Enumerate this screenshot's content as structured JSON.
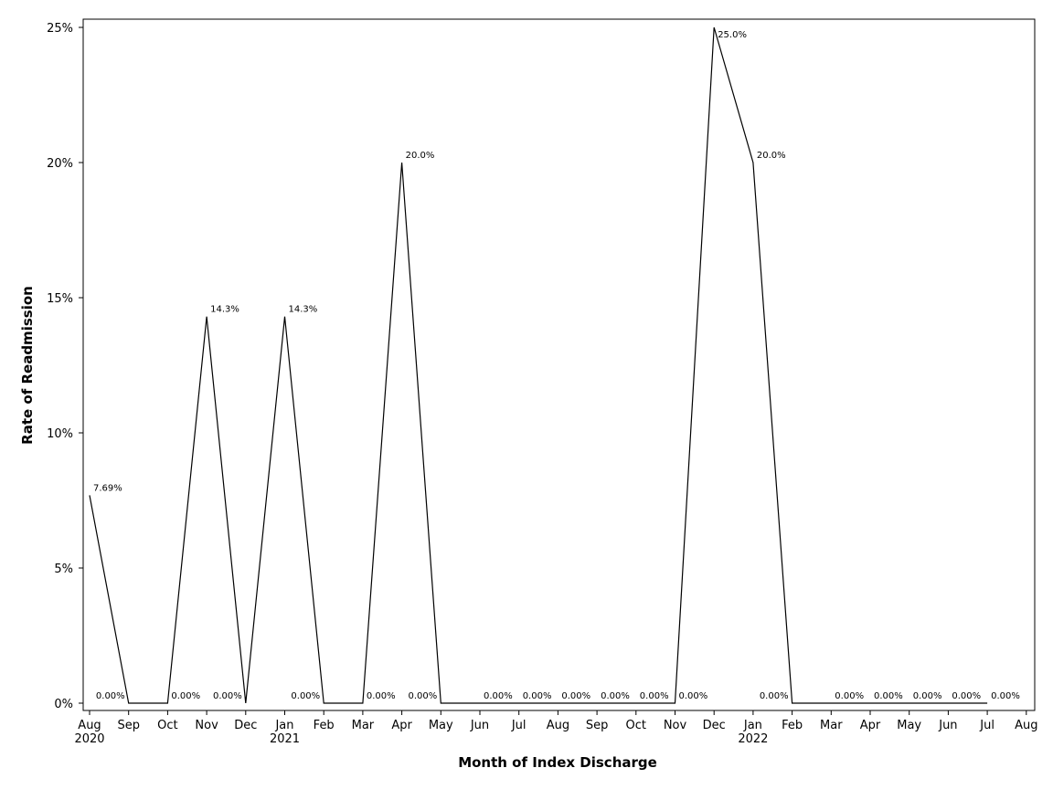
{
  "chart_data": {
    "type": "line",
    "title": "",
    "xlabel": "Month of Index Discharge",
    "ylabel": "Rate of Readmission",
    "ylim": [
      0,
      25
    ],
    "yticks": [
      0,
      5,
      10,
      15,
      20,
      25
    ],
    "ytick_labels": [
      "0%",
      "5%",
      "10%",
      "15%",
      "20%",
      "25%"
    ],
    "grid": false,
    "legend": "none",
    "x": [
      "2020-08",
      "2020-09",
      "2020-10",
      "2020-11",
      "2020-12",
      "2021-01",
      "2021-02",
      "2021-03",
      "2021-04",
      "2021-05",
      "2021-06",
      "2021-07",
      "2021-08",
      "2021-09",
      "2021-10",
      "2021-11",
      "2021-12",
      "2022-01",
      "2022-02",
      "2022-03",
      "2022-04",
      "2022-05",
      "2022-06",
      "2022-07"
    ],
    "xtick_labels": [
      "Aug",
      "Sep",
      "Oct",
      "Nov",
      "Dec",
      "Jan",
      "Feb",
      "Mar",
      "Apr",
      "May",
      "Jun",
      "Jul",
      "Aug",
      "Sep",
      "Oct",
      "Nov",
      "Dec",
      "Jan",
      "Feb",
      "Mar",
      "Apr",
      "May",
      "Jun",
      "Jul",
      "Aug"
    ],
    "year_labels": [
      {
        "tick_index": 0,
        "label": "2020"
      },
      {
        "tick_index": 5,
        "label": "2021"
      },
      {
        "tick_index": 17,
        "label": "2022"
      }
    ],
    "series": [
      {
        "values": [
          7.69,
          0,
          0,
          14.3,
          0,
          14.3,
          0,
          0,
          20.0,
          0,
          0,
          0,
          0,
          0,
          0,
          0,
          25.0,
          20.0,
          0,
          0,
          0,
          0,
          0,
          0
        ],
        "labels": [
          "7.69%",
          "0.00%",
          "0.00%",
          "14.3%",
          "0.00%",
          "14.3%",
          "0.00%",
          "0.00%",
          "20.0%",
          "0.00%",
          "0.00%",
          "0.00%",
          "0.00%",
          "0.00%",
          "0.00%",
          "0.00%",
          "25.0%",
          "20.0%",
          "0.00%",
          "0.00%",
          "0.00%",
          "0.00%",
          "0.00%",
          "0.00%"
        ],
        "color": "#000000"
      }
    ]
  }
}
